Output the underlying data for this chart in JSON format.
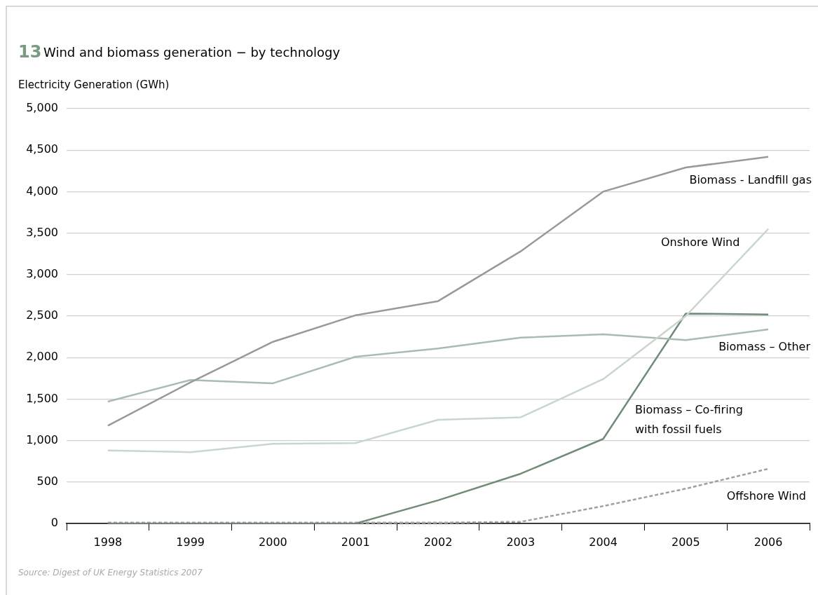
{
  "chart_data": {
    "type": "line",
    "title": "Wind and biomass generation − by technology",
    "ylabel": "Electricity Generation (GWh)",
    "annotations": [
      "13",
      "Source: Digest of UK Energy Statistics 2007"
    ],
    "categories": [
      "1998",
      "1999",
      "2000",
      "2001",
      "2002",
      "2003",
      "2004",
      "2005",
      "2006"
    ],
    "series": [
      {
        "name": "Biomass - Landfill gas",
        "color": "#999999",
        "values": [
          1180,
          1700,
          2190,
          2510,
          2680,
          3280,
          4000,
          4290,
          4420
        ]
      },
      {
        "name": "Onshore Wind",
        "color": "#c9d6cc",
        "values": [
          880,
          860,
          960,
          970,
          1250,
          1280,
          1740,
          2500,
          3550
        ]
      },
      {
        "name": "Biomass – Other",
        "color": "#a8bcb0",
        "values": [
          1470,
          1730,
          1690,
          2010,
          2110,
          2240,
          2280,
          2210,
          2340
        ]
      },
      {
        "name": "Biomass – Co-firing with fossil fuels",
        "color": "#6f8c78",
        "values": [
          0,
          0,
          0,
          0,
          280,
          600,
          1020,
          2530,
          2520
        ]
      },
      {
        "name": "Offshore Wind",
        "color": "#a0a0a0",
        "line_style": "dashed",
        "values": [
          10,
          10,
          10,
          10,
          10,
          20,
          210,
          420,
          660
        ]
      }
    ],
    "ylim": [
      0,
      5000
    ],
    "yticks": [
      0,
      500,
      {
        "value": 1000,
        "label": "1,000"
      },
      {
        "value": 1500,
        "label": "1,500"
      },
      {
        "value": 2000,
        "label": "2,000"
      },
      {
        "value": 2500,
        "label": "2,500"
      },
      {
        "value": 3000,
        "label": "3,000"
      },
      {
        "value": 3500,
        "label": "3,500"
      },
      {
        "value": 4000,
        "label": "4,000"
      },
      {
        "value": 4500,
        "label": "4,500"
      },
      {
        "value": 5000,
        "label": "5,000"
      }
    ],
    "grid": "y",
    "legend": false,
    "marker": "none"
  }
}
